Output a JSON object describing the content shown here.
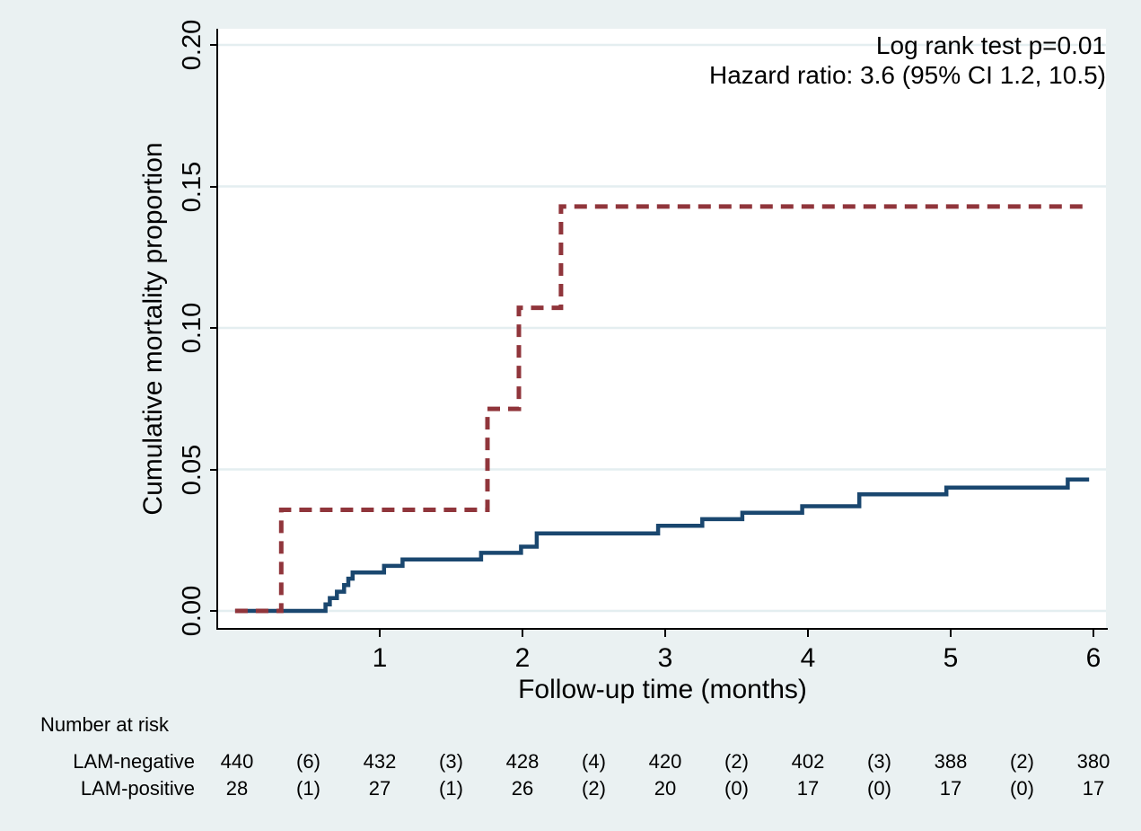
{
  "figure": {
    "background": "#eaf1f2",
    "plot_background": "#ffffff",
    "gridline_color": "#e4eef0",
    "axis_color": "#000000"
  },
  "annotation": {
    "line1": "Log rank test p=0.01",
    "line2": "Hazard ratio: 3.6 (95% CI 1.2, 10.5)"
  },
  "chart_data": {
    "type": "line",
    "subtype": "kaplan-meier-cumulative-incidence-step",
    "title": "",
    "xlabel": "Follow-up time (months)",
    "ylabel": "Cumulative mortality proportion",
    "x_ticks": [
      1,
      2,
      3,
      4,
      5,
      6
    ],
    "y_ticks": [
      "0.00",
      "0.05",
      "0.10",
      "0.15",
      "0.20"
    ],
    "xlim": [
      -0.13,
      6.09
    ],
    "ylim": [
      0,
      0.212
    ],
    "grid": true,
    "legend_position": "none",
    "annotations": [
      "Log rank test p=0.01",
      "Hazard ratio: 3.6 (95% CI 1.2, 10.5)"
    ],
    "series": [
      {
        "name": "LAM-negative",
        "color": "#1a476f",
        "style": "solid",
        "steps": [
          [
            -0.013,
            0
          ],
          [
            0.62,
            0.0023
          ],
          [
            0.65,
            0.0045
          ],
          [
            0.7,
            0.0068
          ],
          [
            0.75,
            0.0091
          ],
          [
            0.78,
            0.0114
          ],
          [
            0.81,
            0.0136
          ],
          [
            1.03,
            0.0159
          ],
          [
            1.16,
            0.0182
          ],
          [
            1.71,
            0.0205
          ],
          [
            1.99,
            0.0227
          ],
          [
            2.1,
            0.0274
          ],
          [
            2.95,
            0.0301
          ],
          [
            3.26,
            0.0324
          ],
          [
            3.54,
            0.0347
          ],
          [
            3.96,
            0.037
          ],
          [
            4.36,
            0.0412
          ],
          [
            4.97,
            0.0436
          ],
          [
            5.82,
            0.0464
          ],
          [
            5.97,
            0.0464
          ]
        ]
      },
      {
        "name": "LAM-positive",
        "color": "#90353b",
        "style": "dashed",
        "steps": [
          [
            -0.013,
            0
          ],
          [
            0.31,
            0.0357
          ],
          [
            1.755,
            0.0714
          ],
          [
            1.975,
            0.1071
          ],
          [
            2.27,
            0.1429
          ],
          [
            5.97,
            0.1429
          ]
        ]
      }
    ]
  },
  "risk_table": {
    "header": "Number at risk",
    "column_times": [
      0,
      0.5,
      1,
      1.5,
      2,
      2.5,
      3,
      3.5,
      4,
      4.5,
      5,
      5.5,
      6
    ],
    "rows": [
      {
        "label": "LAM-negative",
        "values": [
          "440",
          "(6)",
          "432",
          "(3)",
          "428",
          "(4)",
          "420",
          "(2)",
          "402",
          "(3)",
          "388",
          "(2)",
          "380"
        ]
      },
      {
        "label": "LAM-positive",
        "values": [
          "28",
          "(1)",
          "27",
          "(1)",
          "26",
          "(2)",
          "20",
          "(0)",
          "17",
          "(0)",
          "17",
          "(0)",
          "17"
        ]
      }
    ]
  }
}
